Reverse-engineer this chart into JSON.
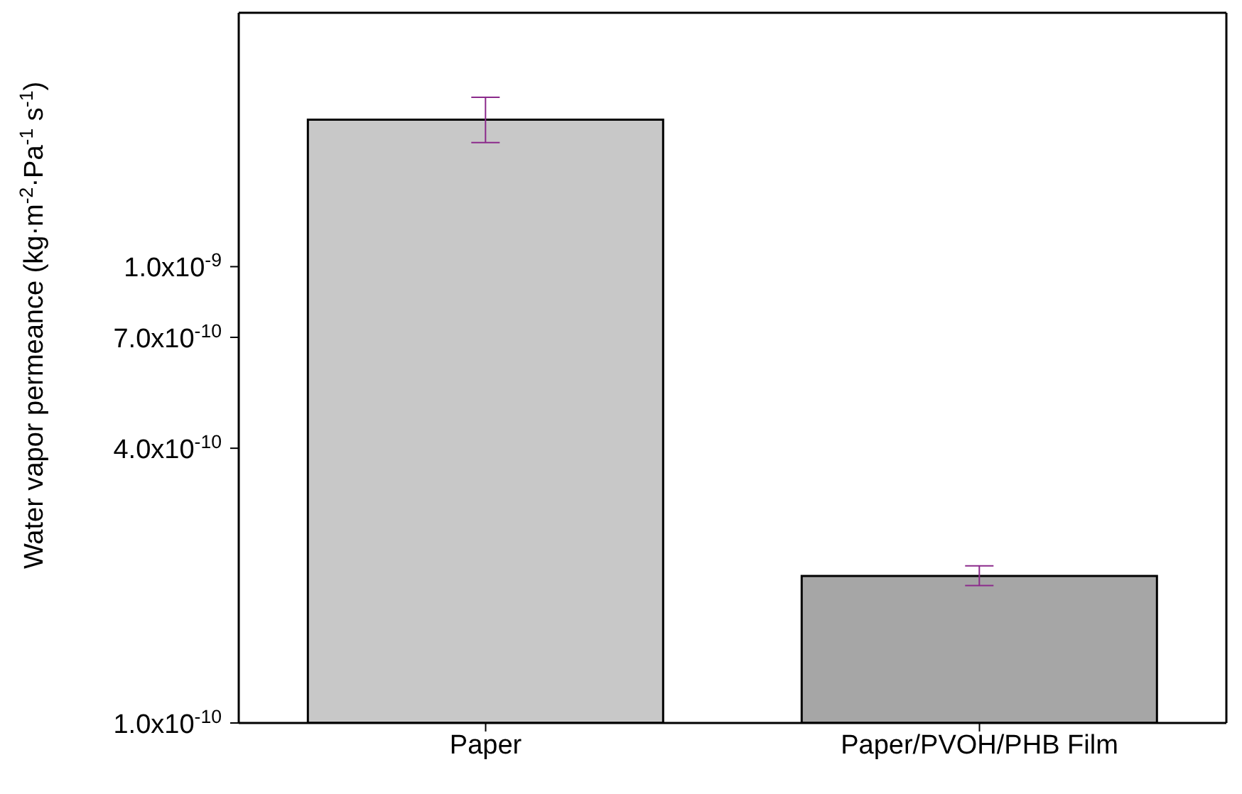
{
  "chart_data": {
    "type": "bar",
    "ylabel": "Water vapor permeance (kg·m$^{-2}$·Pa$^{-1}$ s$^{-1}$)",
    "categories": [
      "Paper",
      "Paper/PVOH/PHB Film"
    ],
    "values": [
      2.1e-09,
      2.1e-10
    ],
    "colors": [
      "#c8c8c8",
      "#a6a6a6"
    ],
    "errors": [
      [
        1.87e-09,
        2.35e-09
      ],
      [
        2e-10,
        2.21e-10
      ]
    ],
    "log": "y",
    "ylim": [
      1e-10,
      3.6e-09
    ],
    "yticks": [
      {
        "value": 1e-10,
        "label": "1.0x10$^{-10}$"
      },
      {
        "value": 4e-10,
        "label": "4.0x10$^{-10}$"
      },
      {
        "value": 7e-10,
        "label": "7.0x10$^{-10}$"
      },
      {
        "value": 1e-09,
        "label": "1.0x10$^{-9}$"
      }
    ],
    "grid": false,
    "legend": false
  }
}
